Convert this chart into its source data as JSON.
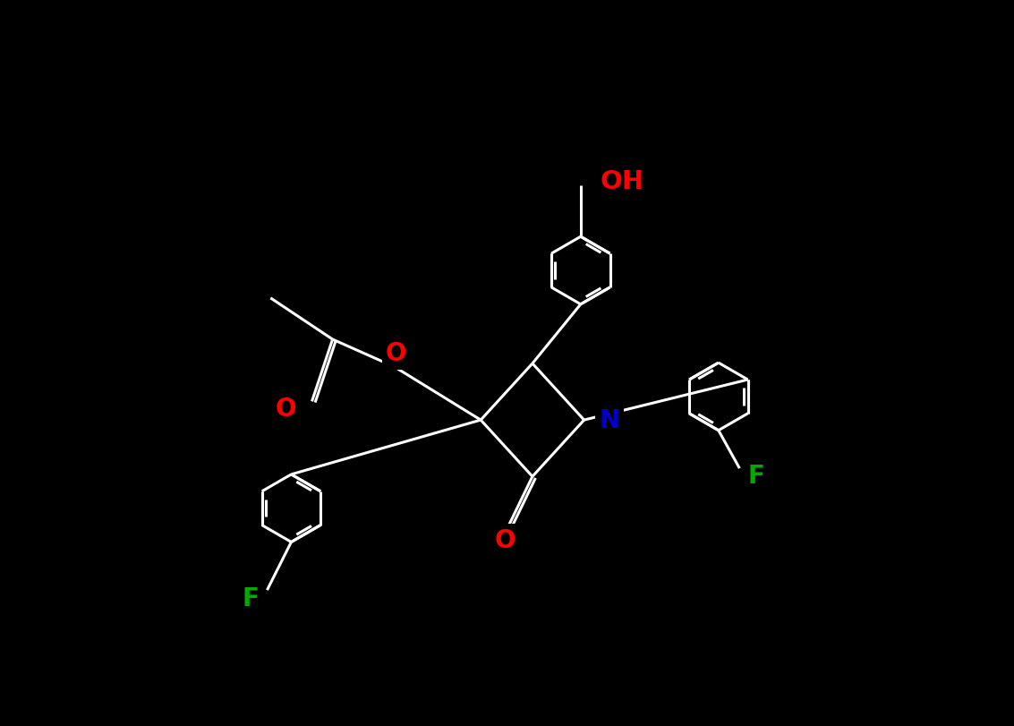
{
  "bg": "#000000",
  "bc": "#ffffff",
  "O_color": "#ff0000",
  "N_color": "#0000cd",
  "F_color": "#00aa00",
  "lw": 2.2,
  "lw_aromatic": 2.2,
  "fs": 19,
  "fig_w": 11.33,
  "fig_h": 8.12,
  "dpi": 100,
  "xlim": [
    0,
    11.33
  ],
  "ylim": [
    0,
    8.12
  ]
}
